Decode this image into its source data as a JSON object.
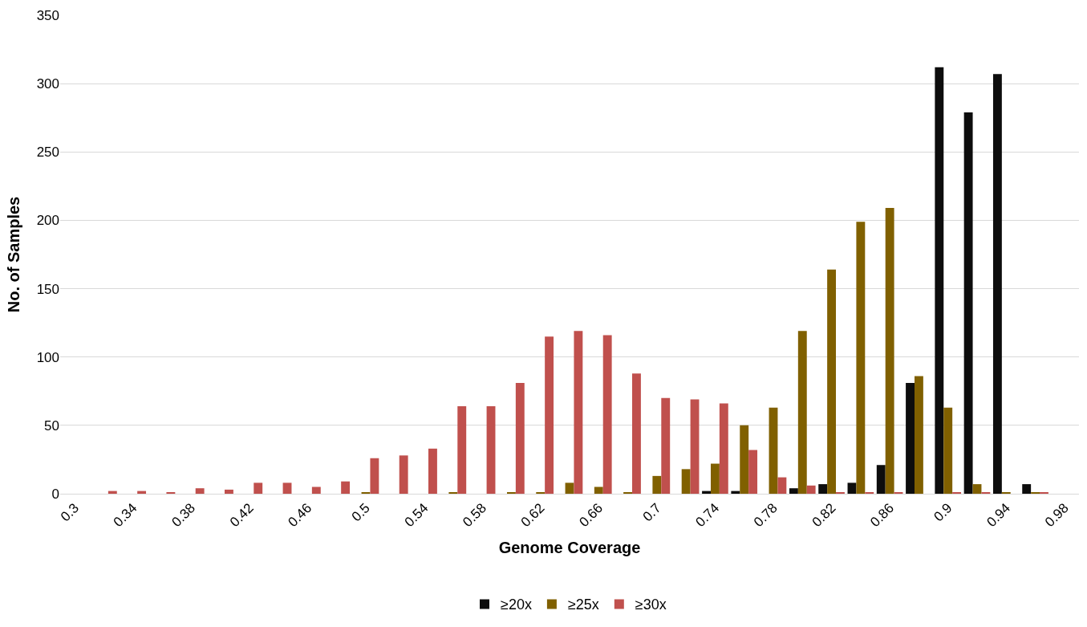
{
  "chart_data": {
    "type": "bar",
    "xlabel": "Genome Coverage",
    "ylabel": "No. of Samples",
    "categories": [
      "0.3",
      null,
      "0.34",
      null,
      "0.38",
      null,
      "0.42",
      null,
      "0.46",
      null,
      "0.5",
      null,
      "0.54",
      null,
      "0.58",
      null,
      "0.62",
      null,
      "0.66",
      null,
      "0.7",
      null,
      "0.74",
      null,
      "0.78",
      null,
      "0.82",
      null,
      "0.86",
      null,
      "0.9",
      null,
      "0.94",
      null,
      "0.98"
    ],
    "series": [
      {
        "name": "≥20x",
        "color": "#0d0d0d",
        "values": [
          0,
          0,
          0,
          0,
          0,
          0,
          0,
          0,
          0,
          0,
          0,
          0,
          0,
          0,
          0,
          0,
          0,
          0,
          0,
          0,
          0,
          0,
          2,
          2,
          0,
          4,
          7,
          8,
          21,
          81,
          312,
          279,
          307,
          7,
          0
        ]
      },
      {
        "name": "≥25x",
        "color": "#806000",
        "values": [
          0,
          0,
          0,
          0,
          0,
          0,
          0,
          0,
          0,
          0,
          1,
          0,
          0,
          1,
          0,
          1,
          1,
          8,
          5,
          1,
          13,
          18,
          22,
          50,
          63,
          119,
          164,
          199,
          209,
          86,
          63,
          7,
          1,
          1,
          0
        ]
      },
      {
        "name": "≥30x",
        "color": "#c0504d",
        "values": [
          0,
          2,
          2,
          1,
          4,
          3,
          8,
          8,
          5,
          9,
          26,
          28,
          33,
          64,
          64,
          81,
          115,
          119,
          116,
          88,
          70,
          69,
          66,
          32,
          12,
          6,
          1,
          1,
          1,
          0,
          1,
          1,
          0,
          1,
          0
        ]
      }
    ],
    "ylim": [
      0,
      350
    ],
    "yticks": [
      0,
      50,
      100,
      150,
      200,
      250,
      300,
      350
    ],
    "grid": "y",
    "legend": "bottom"
  }
}
